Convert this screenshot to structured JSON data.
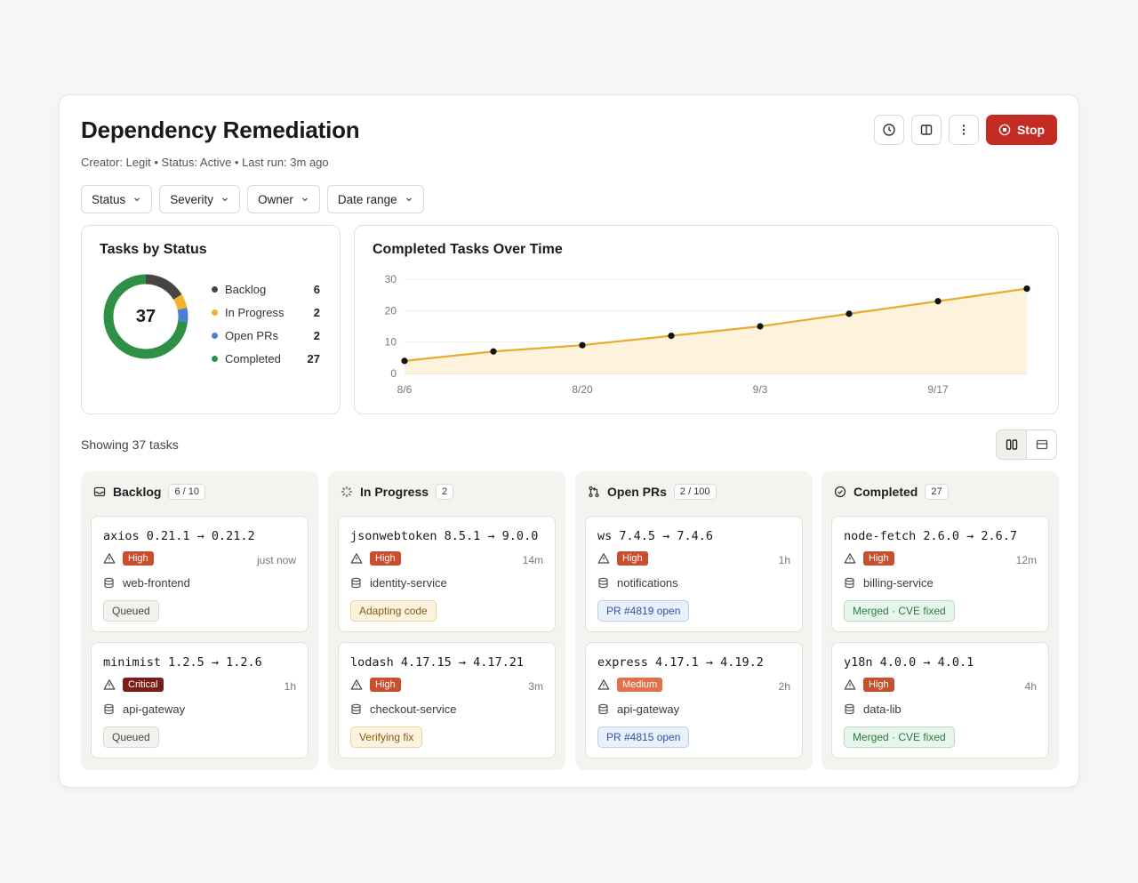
{
  "header": {
    "title": "Dependency Remediation",
    "meta": "Creator: Legit • Status: Active • Last run: 3m ago",
    "stop_label": "Stop",
    "history_icon": "clock-icon",
    "layout_icon": "columns-icon",
    "more_icon": "more-vertical-icon"
  },
  "filters": [
    {
      "label": "Status"
    },
    {
      "label": "Severity"
    },
    {
      "label": "Owner"
    },
    {
      "label": "Date range"
    }
  ],
  "status_card": {
    "title": "Tasks by Status",
    "total": "37",
    "items": [
      {
        "label": "Backlog",
        "value": 6,
        "color": "#4a4440"
      },
      {
        "label": "In Progress",
        "value": 2,
        "color": "#f0b429"
      },
      {
        "label": "Open PRs",
        "value": 2,
        "color": "#4a7fd4"
      },
      {
        "label": "Completed",
        "value": 27,
        "color": "#2f8f46"
      }
    ]
  },
  "chart_data": {
    "type": "area",
    "title": "Completed Tasks Over Time",
    "x": [
      "8/6",
      "8/13",
      "8/20",
      "8/27",
      "9/3",
      "9/10",
      "9/17",
      "9/24"
    ],
    "series": [
      {
        "values": [
          4,
          7,
          9,
          12,
          15,
          19,
          23,
          27
        ]
      }
    ],
    "xticks": [
      "8/6",
      "8/20",
      "9/3",
      "9/17"
    ],
    "yticks": [
      0,
      10,
      20,
      30
    ],
    "ylim": [
      0,
      30
    ],
    "line_color": "#e6ac2c",
    "fill_color": "#fdf3dc",
    "grid": true
  },
  "list": {
    "showing": "Showing 37 tasks"
  },
  "columns": [
    {
      "name": "Backlog",
      "badge": "6 / 10",
      "icon": "inbox-icon",
      "tasks": [
        {
          "title": "axios 0.21.1 → 0.21.2",
          "severity": "High",
          "sev_color": "#c9502f",
          "time": "just now",
          "service": "web-frontend",
          "status": "Queued",
          "status_bg": "#f4f2ef",
          "status_border": "#dcd8d2",
          "status_fg": "#444"
        },
        {
          "title": "minimist 1.2.5 → 1.2.6",
          "severity": "Critical",
          "sev_color": "#7a1d17",
          "time": "1h",
          "service": "api-gateway",
          "status": "Queued",
          "status_bg": "#f4f2ef",
          "status_border": "#dcd8d2",
          "status_fg": "#444"
        }
      ]
    },
    {
      "name": "In Progress",
      "badge": "2",
      "icon": "loader-icon",
      "tasks": [
        {
          "title": "jsonwebtoken 8.5.1 → 9.0.0",
          "severity": "High",
          "sev_color": "#c9502f",
          "time": "14m",
          "service": "identity-service",
          "status": "Adapting code",
          "status_bg": "#fcf3df",
          "status_border": "#ecd49c",
          "status_fg": "#8a5a10"
        },
        {
          "title": "lodash 4.17.15 → 4.17.21",
          "severity": "High",
          "sev_color": "#c9502f",
          "time": "3m",
          "service": "checkout-service",
          "status": "Verifying fix",
          "status_bg": "#fcf3df",
          "status_border": "#ecd49c",
          "status_fg": "#8a5a10"
        }
      ]
    },
    {
      "name": "Open PRs",
      "badge": "2 / 100",
      "icon": "git-pull-request-icon",
      "tasks": [
        {
          "title": "ws 7.4.5 → 7.4.6",
          "severity": "High",
          "sev_color": "#c9502f",
          "time": "1h",
          "service": "notifications",
          "status": "PR #4819 open",
          "status_bg": "#e9f0fb",
          "status_border": "#b9cdee",
          "status_fg": "#2b56a8"
        },
        {
          "title": "express 4.17.1 → 4.19.2",
          "severity": "Medium",
          "sev_color": "#e0714a",
          "time": "2h",
          "service": "api-gateway",
          "status": "PR #4815 open",
          "status_bg": "#e9f0fb",
          "status_border": "#b9cdee",
          "status_fg": "#2b56a8"
        }
      ]
    },
    {
      "name": "Completed",
      "badge": "27",
      "icon": "check-circle-icon",
      "tasks": [
        {
          "title": "node-fetch 2.6.0 → 2.6.7",
          "severity": "High",
          "sev_color": "#c9502f",
          "time": "12m",
          "service": "billing-service",
          "status": "Merged · CVE fixed",
          "status_bg": "#e8f5ec",
          "status_border": "#b5dcc0",
          "status_fg": "#2a7a3f"
        },
        {
          "title": "y18n 4.0.0 → 4.0.1",
          "severity": "High",
          "sev_color": "#c9502f",
          "time": "4h",
          "service": "data-lib",
          "status": "Merged · CVE fixed",
          "status_bg": "#e8f5ec",
          "status_border": "#b5dcc0",
          "status_fg": "#2a7a3f"
        }
      ]
    }
  ]
}
